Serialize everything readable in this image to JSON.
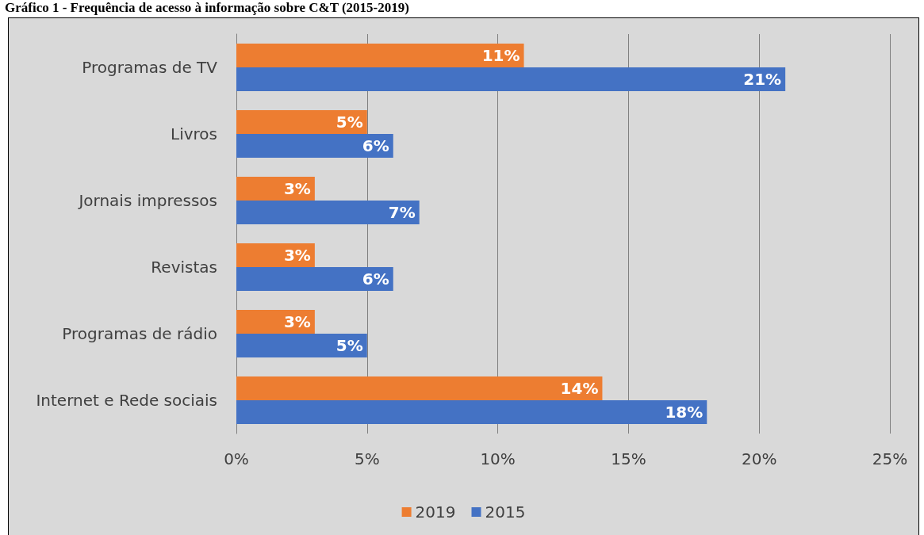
{
  "chart_data": {
    "type": "bar",
    "orientation": "horizontal",
    "title": "Gráfico 1 - Frequência de acesso à informação sobre C&T (2015-2019)",
    "categories": [
      "Programas de TV",
      "Livros",
      "Jornais impressos",
      "Revistas",
      "Programas de rádio",
      "Internet e Rede sociais"
    ],
    "series": [
      {
        "name": "2019",
        "color": "#ed7d31",
        "values": [
          11,
          5,
          3,
          3,
          3,
          14
        ],
        "value_labels": [
          "11%",
          "5%",
          "3%",
          "3%",
          "3%",
          "14%"
        ]
      },
      {
        "name": "2015",
        "color": "#4472c4",
        "values": [
          21,
          6,
          7,
          6,
          5,
          18
        ],
        "value_labels": [
          "21%",
          "6%",
          "7%",
          "6%",
          "5%",
          "18%"
        ]
      }
    ],
    "xlim": [
      0,
      25
    ],
    "xticks": [
      {
        "value": 0,
        "label": "0%"
      },
      {
        "value": 5,
        "label": "5%"
      },
      {
        "value": 10,
        "label": "10%"
      },
      {
        "value": 15,
        "label": "15%"
      },
      {
        "value": 20,
        "label": "20%"
      },
      {
        "value": 25,
        "label": "25%"
      }
    ],
    "grid": "x",
    "legend": "bottom"
  }
}
